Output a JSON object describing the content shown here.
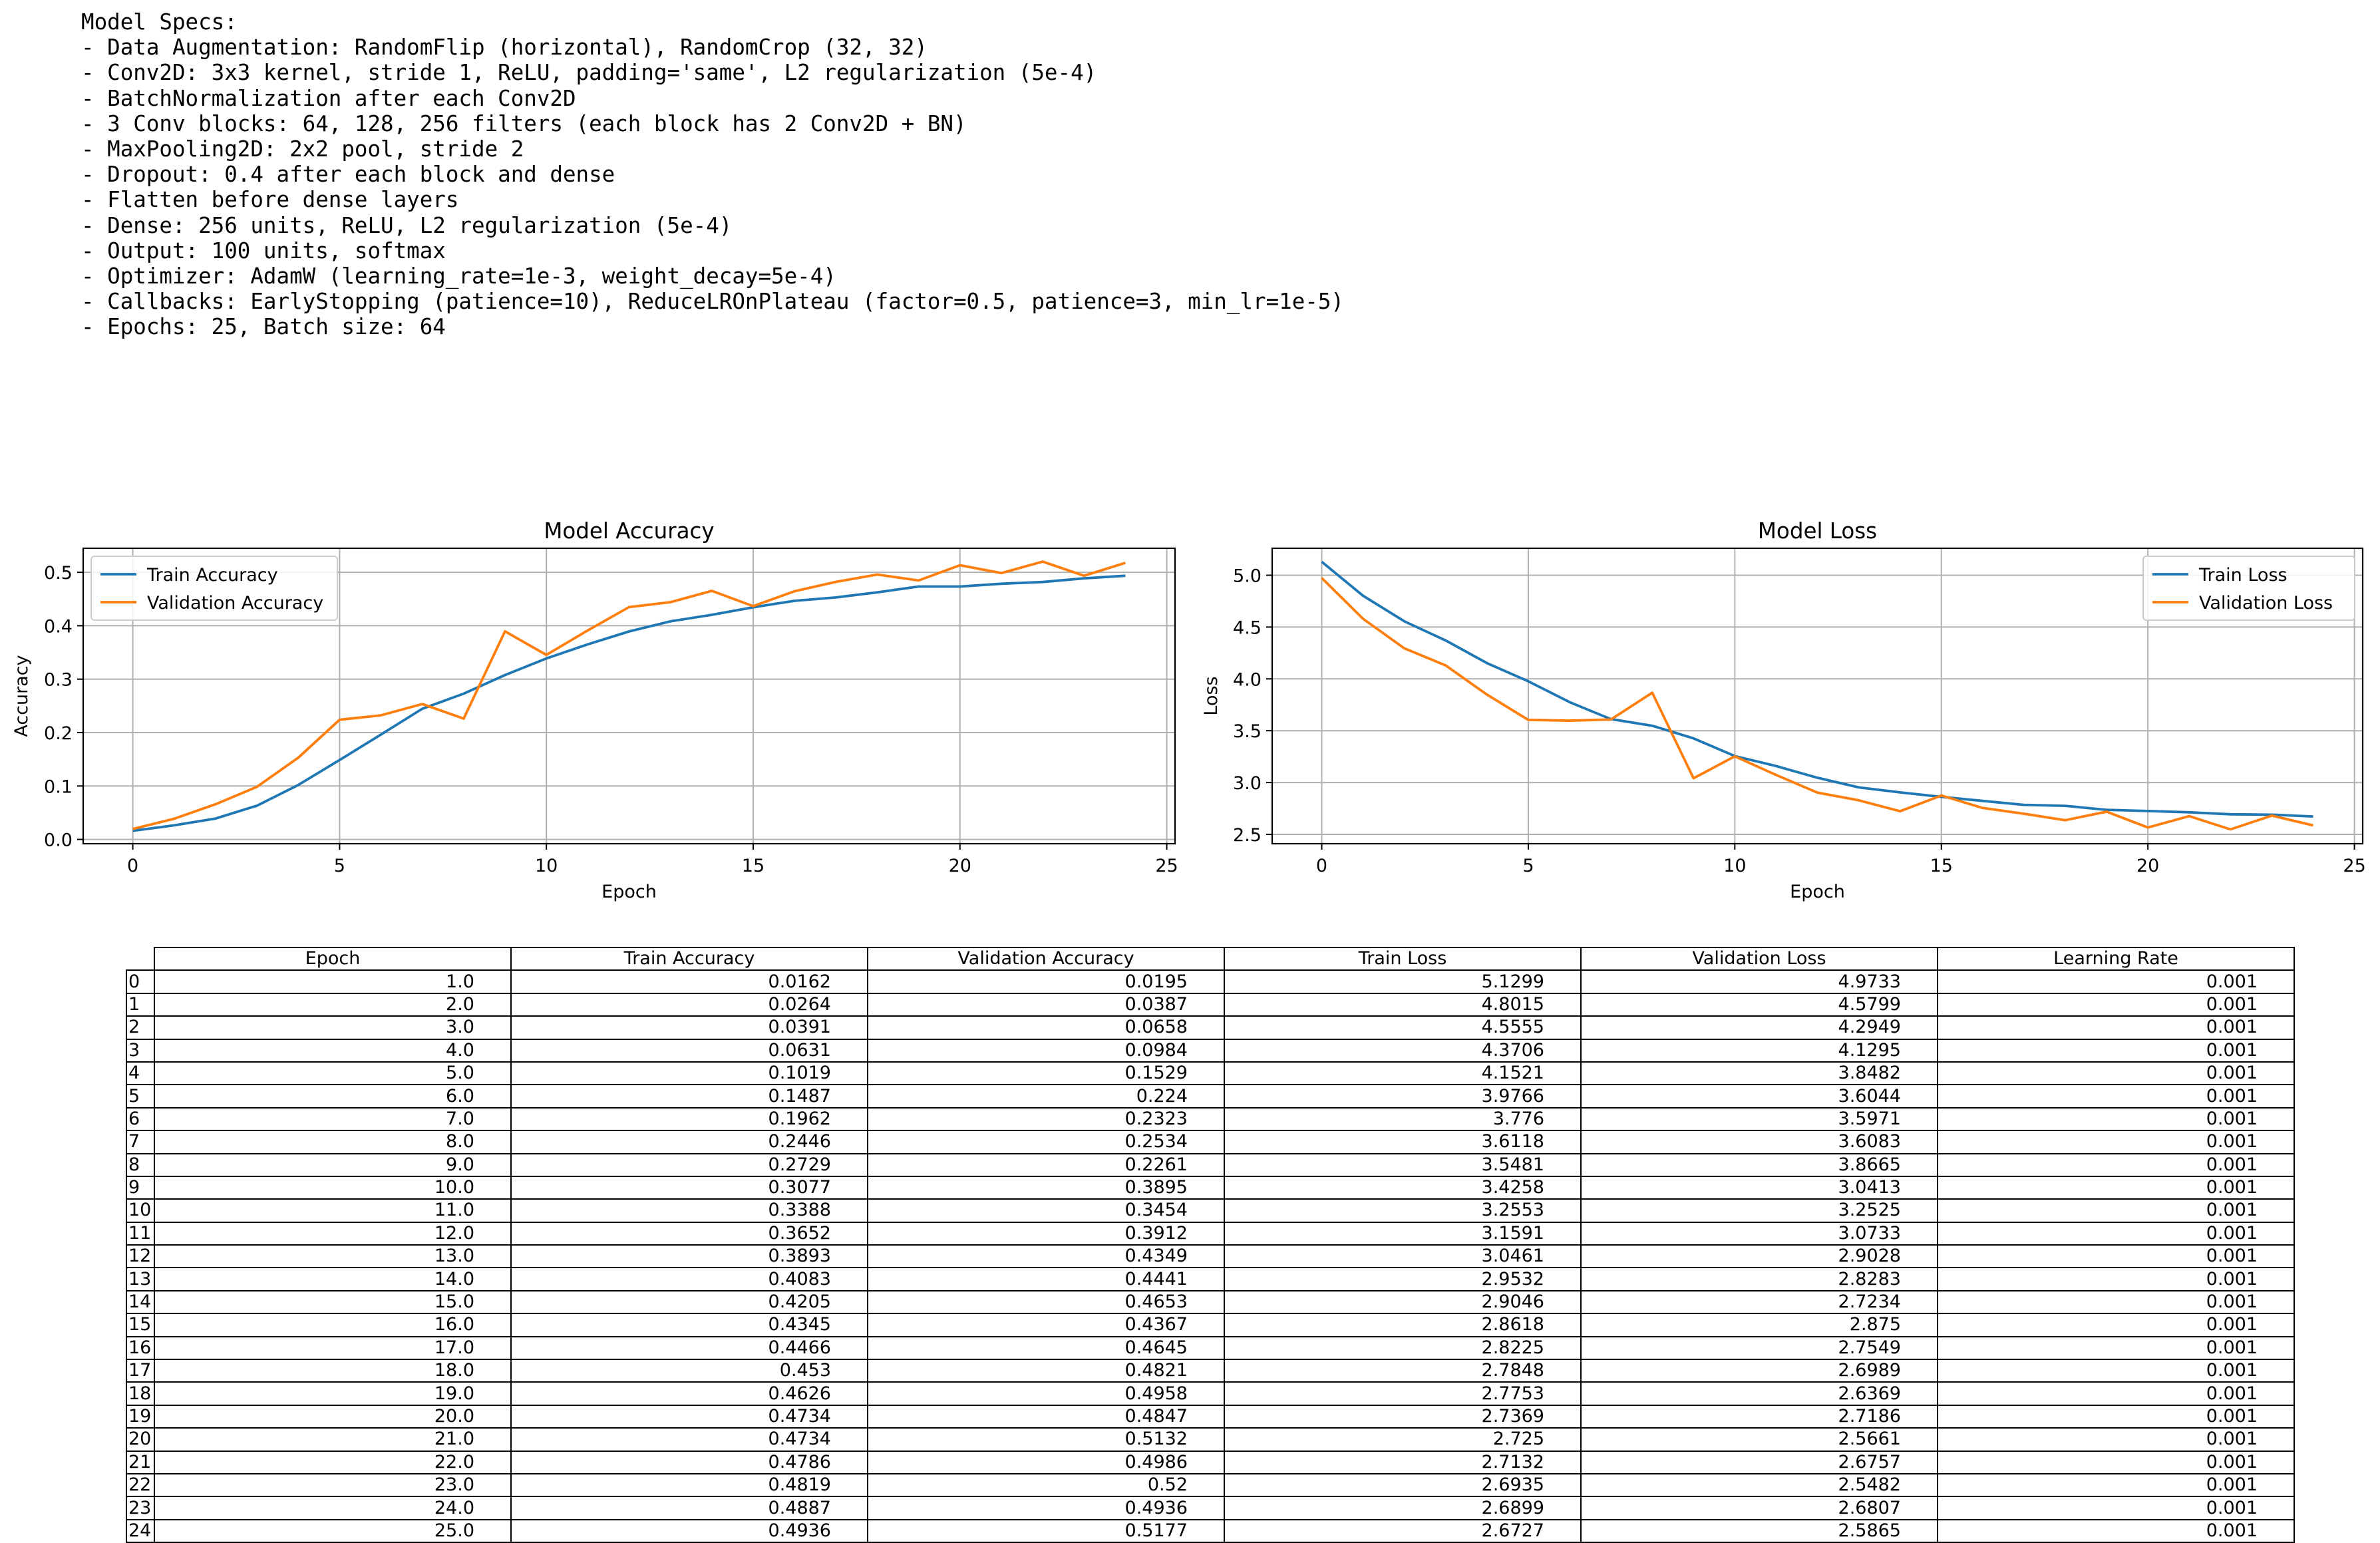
{
  "specs": {
    "lines": [
      "Model Specs:",
      "- Data Augmentation: RandomFlip (horizontal), RandomCrop (32, 32)",
      "- Conv2D: 3x3 kernel, stride 1, ReLU, padding='same', L2 regularization (5e-4)",
      "- BatchNormalization after each Conv2D",
      "- 3 Conv blocks: 64, 128, 256 filters (each block has 2 Conv2D + BN)",
      "- MaxPooling2D: 2x2 pool, stride 2",
      "- Dropout: 0.4 after each block and dense",
      "- Flatten before dense layers",
      "- Dense: 256 units, ReLU, L2 regularization (5e-4)",
      "- Output: 100 units, softmax",
      "- Optimizer: AdamW (learning_rate=1e-3, weight_decay=5e-4)",
      "- Callbacks: EarlyStopping (patience=10), ReduceLROnPlateau (factor=0.5, patience=3, min_lr=1e-5)",
      "- Epochs: 25, Batch size: 64"
    ]
  },
  "colors": {
    "train": "#1f77b4",
    "validation": "#ff7f0e",
    "grid": "#b0b0b0"
  },
  "chart_data": [
    {
      "type": "line",
      "title": "Model Accuracy",
      "xlabel": "Epoch",
      "ylabel": "Accuracy",
      "xlim": [
        -1.2,
        25.2
      ],
      "ylim": [
        -0.008,
        0.545
      ],
      "xticks": [
        0,
        5,
        10,
        15,
        20,
        25
      ],
      "yticks": [
        0.0,
        0.1,
        0.2,
        0.3,
        0.4,
        0.5
      ],
      "ytick_labels": [
        "0.0",
        "0.1",
        "0.2",
        "0.3",
        "0.4",
        "0.5"
      ],
      "grid": true,
      "legend_position": "upper-left",
      "x": [
        0,
        1,
        2,
        3,
        4,
        5,
        6,
        7,
        8,
        9,
        10,
        11,
        12,
        13,
        14,
        15,
        16,
        17,
        18,
        19,
        20,
        21,
        22,
        23,
        24
      ],
      "series": [
        {
          "name": "Train Accuracy",
          "color_key": "train",
          "values": [
            0.0162,
            0.0264,
            0.0391,
            0.0631,
            0.1019,
            0.1487,
            0.1962,
            0.2446,
            0.2729,
            0.3077,
            0.3388,
            0.3652,
            0.3893,
            0.4083,
            0.4205,
            0.4345,
            0.4466,
            0.453,
            0.4626,
            0.4734,
            0.4734,
            0.4786,
            0.4819,
            0.4887,
            0.4936
          ]
        },
        {
          "name": "Validation Accuracy",
          "color_key": "validation",
          "values": [
            0.0195,
            0.0387,
            0.0658,
            0.0984,
            0.1529,
            0.224,
            0.2323,
            0.2534,
            0.2261,
            0.3895,
            0.3454,
            0.3912,
            0.4349,
            0.4441,
            0.4653,
            0.4367,
            0.4645,
            0.4821,
            0.4958,
            0.4847,
            0.5132,
            0.4986,
            0.52,
            0.4936,
            0.5177
          ]
        }
      ]
    },
    {
      "type": "line",
      "title": "Model Loss",
      "xlabel": "Epoch",
      "ylabel": "Loss",
      "xlim": [
        -1.2,
        25.2
      ],
      "ylim": [
        2.41,
        5.26
      ],
      "xticks": [
        0,
        5,
        10,
        15,
        20,
        25
      ],
      "yticks": [
        2.5,
        3.0,
        3.5,
        4.0,
        4.5,
        5.0
      ],
      "ytick_labels": [
        "2.5",
        "3.0",
        "3.5",
        "4.0",
        "4.5",
        "5.0"
      ],
      "grid": true,
      "legend_position": "upper-right",
      "x": [
        0,
        1,
        2,
        3,
        4,
        5,
        6,
        7,
        8,
        9,
        10,
        11,
        12,
        13,
        14,
        15,
        16,
        17,
        18,
        19,
        20,
        21,
        22,
        23,
        24
      ],
      "series": [
        {
          "name": "Train Loss",
          "color_key": "train",
          "values": [
            5.1299,
            4.8015,
            4.5555,
            4.3706,
            4.1521,
            3.9766,
            3.776,
            3.6118,
            3.5481,
            3.4258,
            3.2553,
            3.1591,
            3.0461,
            2.9532,
            2.9046,
            2.8618,
            2.8225,
            2.7848,
            2.7753,
            2.7369,
            2.725,
            2.7132,
            2.6935,
            2.6899,
            2.6727
          ]
        },
        {
          "name": "Validation Loss",
          "color_key": "validation",
          "values": [
            4.9733,
            4.5799,
            4.2949,
            4.1295,
            3.8482,
            3.6044,
            3.5971,
            3.6083,
            3.8665,
            3.0413,
            3.2525,
            3.0733,
            2.9028,
            2.8283,
            2.7234,
            2.875,
            2.7549,
            2.6989,
            2.6369,
            2.7186,
            2.5661,
            2.6757,
            2.5482,
            2.6807,
            2.5865
          ]
        }
      ]
    },
    {
      "type": "table",
      "columns": [
        "Epoch",
        "Train Accuracy",
        "Validation Accuracy",
        "Train Loss",
        "Validation Loss",
        "Learning Rate"
      ],
      "rows": [
        [
          "0",
          "1.0",
          "0.0162",
          "0.0195",
          "5.1299",
          "4.9733",
          "0.001"
        ],
        [
          "1",
          "2.0",
          "0.0264",
          "0.0387",
          "4.8015",
          "4.5799",
          "0.001"
        ],
        [
          "2",
          "3.0",
          "0.0391",
          "0.0658",
          "4.5555",
          "4.2949",
          "0.001"
        ],
        [
          "3",
          "4.0",
          "0.0631",
          "0.0984",
          "4.3706",
          "4.1295",
          "0.001"
        ],
        [
          "4",
          "5.0",
          "0.1019",
          "0.1529",
          "4.1521",
          "3.8482",
          "0.001"
        ],
        [
          "5",
          "6.0",
          "0.1487",
          "0.224",
          "3.9766",
          "3.6044",
          "0.001"
        ],
        [
          "6",
          "7.0",
          "0.1962",
          "0.2323",
          "3.776",
          "3.5971",
          "0.001"
        ],
        [
          "7",
          "8.0",
          "0.2446",
          "0.2534",
          "3.6118",
          "3.6083",
          "0.001"
        ],
        [
          "8",
          "9.0",
          "0.2729",
          "0.2261",
          "3.5481",
          "3.8665",
          "0.001"
        ],
        [
          "9",
          "10.0",
          "0.3077",
          "0.3895",
          "3.4258",
          "3.0413",
          "0.001"
        ],
        [
          "10",
          "11.0",
          "0.3388",
          "0.3454",
          "3.2553",
          "3.2525",
          "0.001"
        ],
        [
          "11",
          "12.0",
          "0.3652",
          "0.3912",
          "3.1591",
          "3.0733",
          "0.001"
        ],
        [
          "12",
          "13.0",
          "0.3893",
          "0.4349",
          "3.0461",
          "2.9028",
          "0.001"
        ],
        [
          "13",
          "14.0",
          "0.4083",
          "0.4441",
          "2.9532",
          "2.8283",
          "0.001"
        ],
        [
          "14",
          "15.0",
          "0.4205",
          "0.4653",
          "2.9046",
          "2.7234",
          "0.001"
        ],
        [
          "15",
          "16.0",
          "0.4345",
          "0.4367",
          "2.8618",
          "2.875",
          "0.001"
        ],
        [
          "16",
          "17.0",
          "0.4466",
          "0.4645",
          "2.8225",
          "2.7549",
          "0.001"
        ],
        [
          "17",
          "18.0",
          "0.453",
          "0.4821",
          "2.7848",
          "2.6989",
          "0.001"
        ],
        [
          "18",
          "19.0",
          "0.4626",
          "0.4958",
          "2.7753",
          "2.6369",
          "0.001"
        ],
        [
          "19",
          "20.0",
          "0.4734",
          "0.4847",
          "2.7369",
          "2.7186",
          "0.001"
        ],
        [
          "20",
          "21.0",
          "0.4734",
          "0.5132",
          "2.725",
          "2.5661",
          "0.001"
        ],
        [
          "21",
          "22.0",
          "0.4786",
          "0.4986",
          "2.7132",
          "2.6757",
          "0.001"
        ],
        [
          "22",
          "23.0",
          "0.4819",
          "0.52",
          "2.6935",
          "2.5482",
          "0.001"
        ],
        [
          "23",
          "24.0",
          "0.4887",
          "0.4936",
          "2.6899",
          "2.6807",
          "0.001"
        ],
        [
          "24",
          "25.0",
          "0.4936",
          "0.5177",
          "2.6727",
          "2.5865",
          "0.001"
        ]
      ]
    }
  ]
}
